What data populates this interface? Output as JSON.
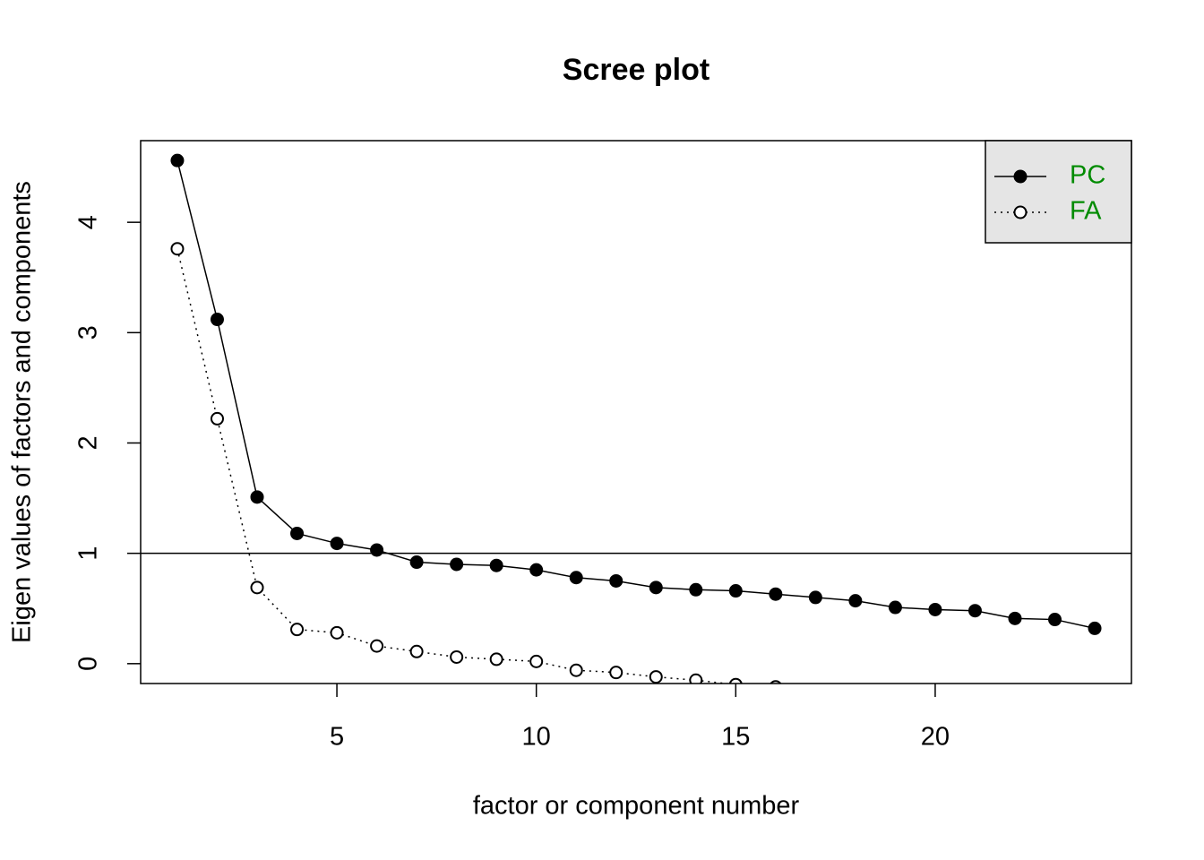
{
  "chart_data": {
    "type": "line",
    "title": "Scree plot",
    "x_label": "factor or component number",
    "y_label": "Eigen values of factors and components",
    "x": [
      1,
      2,
      3,
      4,
      5,
      6,
      7,
      8,
      9,
      10,
      11,
      12,
      13,
      14,
      15,
      16,
      17,
      18,
      19,
      20,
      21,
      22,
      23,
      24
    ],
    "series": [
      {
        "name": "PC",
        "color": "#000000",
        "marker": "filled",
        "line": "solid",
        "values": [
          4.56,
          3.12,
          1.51,
          1.18,
          1.09,
          1.03,
          0.92,
          0.9,
          0.89,
          0.85,
          0.78,
          0.75,
          0.69,
          0.67,
          0.66,
          0.63,
          0.6,
          0.57,
          0.51,
          0.49,
          0.48,
          0.41,
          0.4,
          0.32
        ]
      },
      {
        "name": "FA",
        "color": "#000000",
        "marker": "open",
        "line": "dotted",
        "values": [
          3.76,
          2.22,
          0.69,
          0.31,
          0.28,
          0.16,
          0.11,
          0.06,
          0.04,
          0.02,
          -0.06,
          -0.08,
          -0.12,
          -0.15,
          -0.19,
          -0.21,
          null,
          null,
          null,
          null,
          null,
          null,
          null,
          null
        ]
      }
    ],
    "xlim": [
      0.08,
      24.92
    ],
    "ylim": [
      -0.18,
      4.74
    ],
    "xticks": [
      5,
      10,
      15,
      20
    ],
    "yticks": [
      0,
      1,
      2,
      3,
      4
    ],
    "reference_line": 1,
    "legend": "topright",
    "legend_text_color": "#008b00"
  }
}
